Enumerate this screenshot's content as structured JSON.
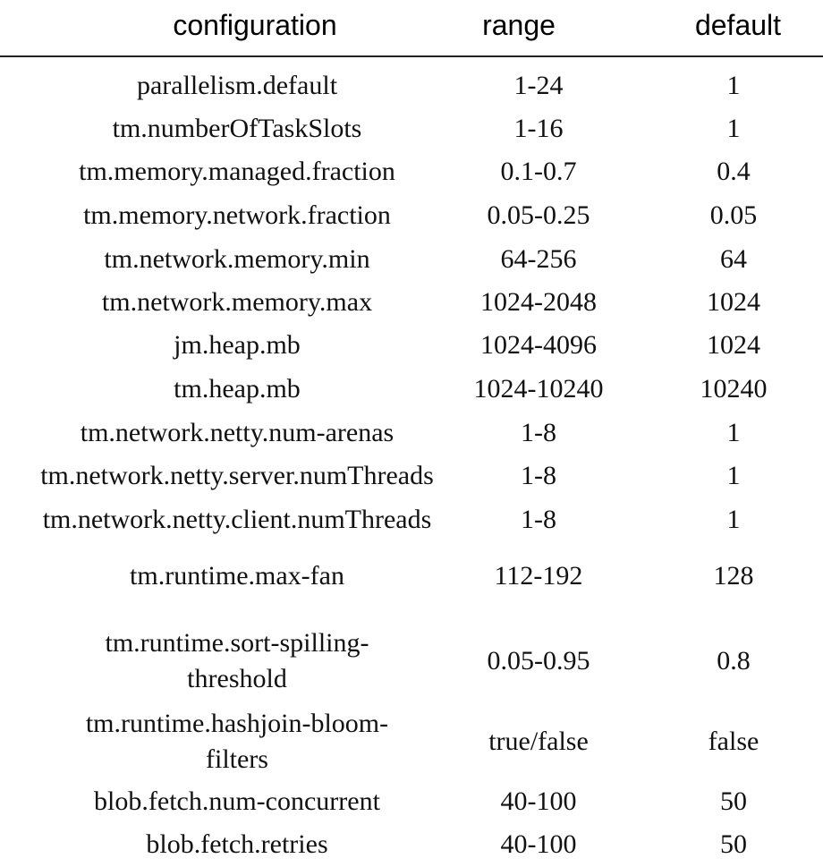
{
  "table": {
    "headers": {
      "configuration": "configuration",
      "range": "range",
      "default": "default"
    },
    "rows": [
      {
        "configuration": "parallelism.default",
        "range": "1-24",
        "default": "1"
      },
      {
        "configuration": "tm.numberOfTaskSlots",
        "range": "1-16",
        "default": "1"
      },
      {
        "configuration": "tm.memory.managed.fraction",
        "range": "0.1-0.7",
        "default": "0.4"
      },
      {
        "configuration": "tm.memory.network.fraction",
        "range": "0.05-0.25",
        "default": "0.05"
      },
      {
        "configuration": "tm.network.memory.min",
        "range": "64-256",
        "default": "64"
      },
      {
        "configuration": "tm.network.memory.max",
        "range": "1024-2048",
        "default": "1024"
      },
      {
        "configuration": "jm.heap.mb",
        "range": "1024-4096",
        "default": "1024"
      },
      {
        "configuration": "tm.heap.mb",
        "range": "1024-10240",
        "default": "10240"
      },
      {
        "configuration": "tm.network.netty.num-arenas",
        "range": "1-8",
        "default": "1"
      },
      {
        "configuration": "tm.network.netty.server.numThreads",
        "range": "1-8",
        "default": "1"
      },
      {
        "configuration": "tm.network.netty.client.numThreads",
        "range": "1-8",
        "default": "1"
      },
      {
        "configuration": "tm.runtime.max-fan",
        "range": "112-192",
        "default": "128"
      },
      {
        "configuration_lines": [
          "tm.runtime.sort-spilling-",
          "threshold"
        ],
        "range": "0.05-0.95",
        "default": "0.8"
      },
      {
        "configuration_lines": [
          "tm.runtime.hashjoin-bloom-",
          "filters"
        ],
        "range": "true/false",
        "default": "false"
      },
      {
        "configuration": "blob.fetch.num-concurrent",
        "range": "40-100",
        "default": "50"
      },
      {
        "configuration": "blob.fetch.retries",
        "range": "40-100",
        "default": "50"
      }
    ]
  }
}
